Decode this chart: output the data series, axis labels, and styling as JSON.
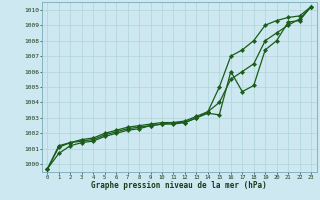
{
  "xlabel": "Graphe pression niveau de la mer (hPa)",
  "bg_color": "#cde8f0",
  "line_color": "#1a5c1a",
  "grid_color": "#b0d4d8",
  "xlim": [
    -0.5,
    23.5
  ],
  "ylim": [
    999.5,
    1010.5
  ],
  "yticks": [
    1000,
    1001,
    1002,
    1003,
    1004,
    1005,
    1006,
    1007,
    1008,
    1009,
    1010
  ],
  "xticks": [
    0,
    1,
    2,
    3,
    4,
    5,
    6,
    7,
    8,
    9,
    10,
    11,
    12,
    13,
    14,
    15,
    16,
    17,
    18,
    19,
    20,
    21,
    22,
    23
  ],
  "series": [
    [
      999.7,
      1000.7,
      1001.2,
      1001.4,
      1001.5,
      1001.8,
      1002.0,
      1002.2,
      1002.3,
      1002.5,
      1002.6,
      1002.7,
      1002.7,
      1003.0,
      1003.3,
      1003.2,
      1006.0,
      1004.7,
      1005.1,
      1007.4,
      1008.0,
      1009.2,
      1009.3,
      1010.2
    ],
    [
      999.7,
      1001.1,
      1001.4,
      1001.5,
      1001.6,
      1001.9,
      1002.1,
      1002.3,
      1002.4,
      1002.5,
      1002.6,
      1002.6,
      1002.7,
      1003.0,
      1003.4,
      1005.0,
      1007.0,
      1007.4,
      1008.0,
      1009.0,
      1009.3,
      1009.5,
      1009.6,
      1010.2
    ],
    [
      999.7,
      1001.2,
      1001.4,
      1001.6,
      1001.7,
      1002.0,
      1002.2,
      1002.4,
      1002.5,
      1002.6,
      1002.7,
      1002.7,
      1002.8,
      1003.1,
      1003.4,
      1004.0,
      1005.5,
      1006.0,
      1006.5,
      1008.0,
      1008.5,
      1009.0,
      1009.4,
      1010.2
    ]
  ]
}
